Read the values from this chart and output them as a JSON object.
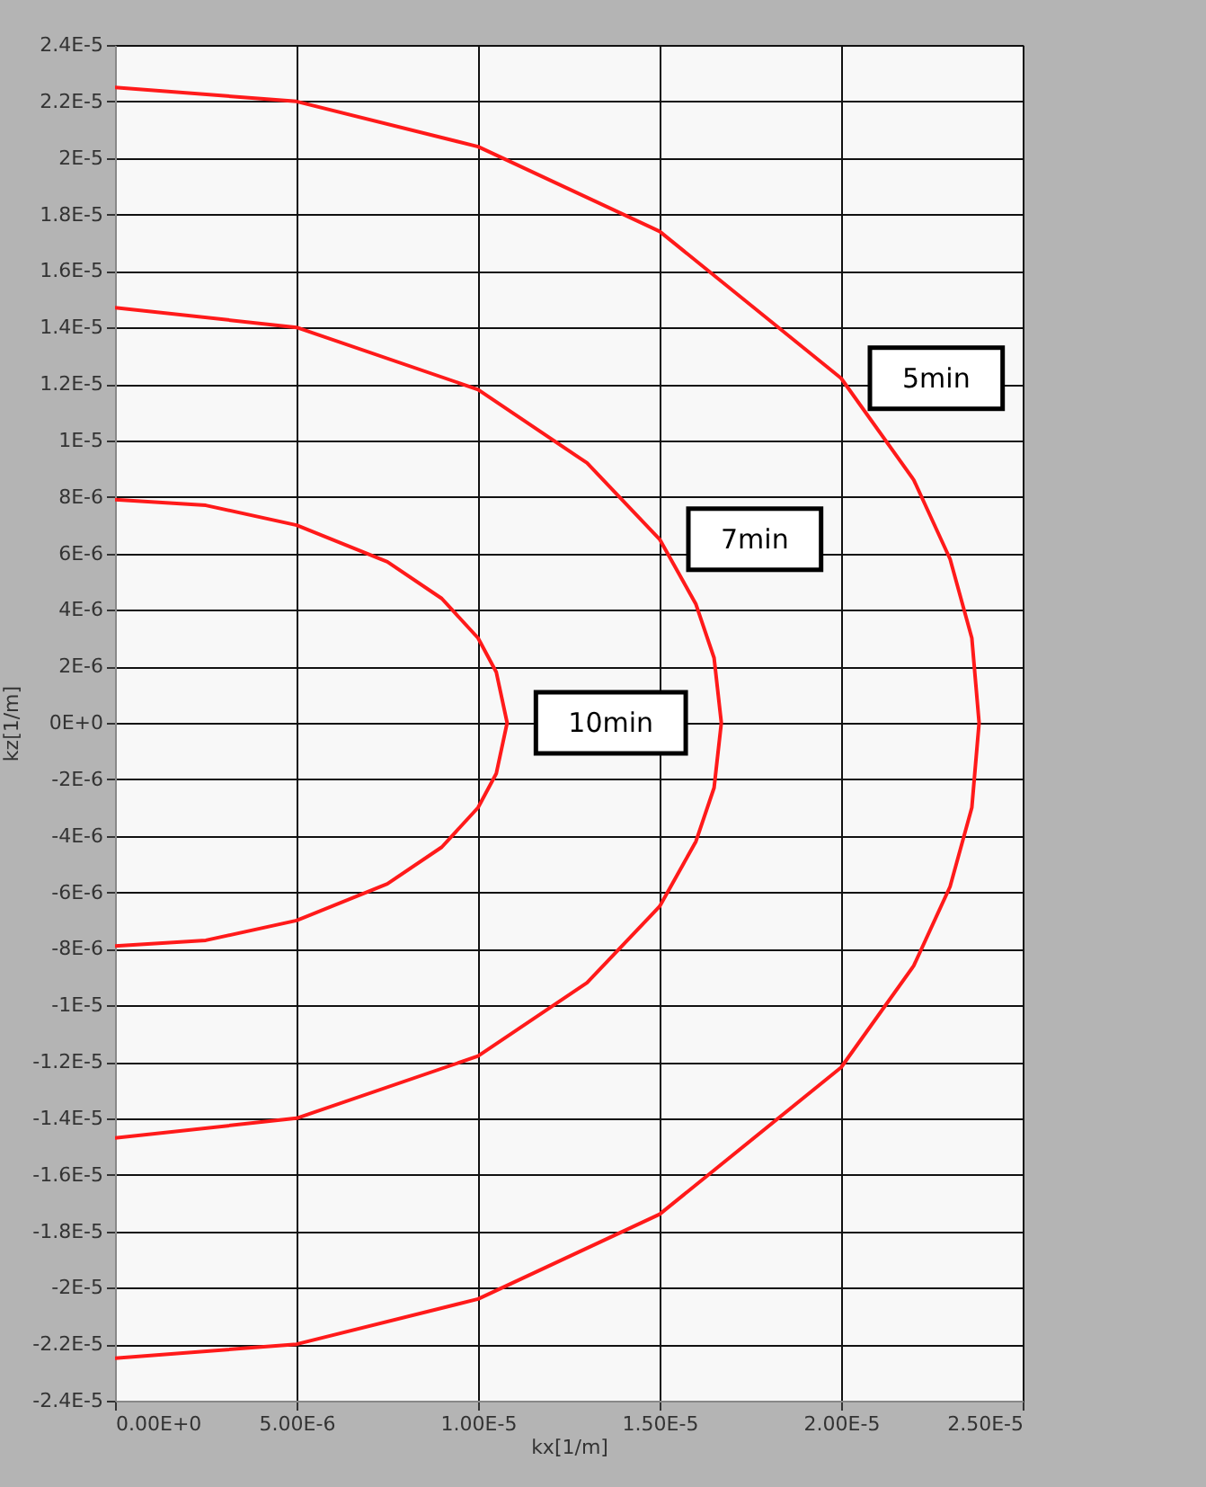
{
  "chart_data": {
    "type": "line",
    "xlabel": "kx[1/m]",
    "ylabel": "kz[1/m]",
    "xlim": [
      0,
      2.5e-05
    ],
    "ylim": [
      -2.4e-05,
      2.4e-05
    ],
    "xticks": [
      {
        "value": 0,
        "label": "0.00E+0"
      },
      {
        "value": 5e-06,
        "label": "5.00E-6"
      },
      {
        "value": 1e-05,
        "label": "1.00E-5"
      },
      {
        "value": 1.5e-05,
        "label": "1.50E-5"
      },
      {
        "value": 2e-05,
        "label": "2.00E-5"
      },
      {
        "value": 2.5e-05,
        "label": "2.50E-5"
      }
    ],
    "yticks": [
      {
        "value": -2.4e-05,
        "label": "-2.4E-5"
      },
      {
        "value": -2.2e-05,
        "label": "-2.2E-5"
      },
      {
        "value": -2e-05,
        "label": "-2E-5"
      },
      {
        "value": -1.8e-05,
        "label": "-1.8E-5"
      },
      {
        "value": -1.6e-05,
        "label": "-1.6E-5"
      },
      {
        "value": -1.4e-05,
        "label": "-1.4E-5"
      },
      {
        "value": -1.2e-05,
        "label": "-1.2E-5"
      },
      {
        "value": -1e-05,
        "label": "-1E-5"
      },
      {
        "value": -8e-06,
        "label": "-8E-6"
      },
      {
        "value": -6e-06,
        "label": "-6E-6"
      },
      {
        "value": -4e-06,
        "label": "-4E-6"
      },
      {
        "value": -2e-06,
        "label": "-2E-6"
      },
      {
        "value": 0,
        "label": "0E+0"
      },
      {
        "value": 2e-06,
        "label": "2E-6"
      },
      {
        "value": 4e-06,
        "label": "4E-6"
      },
      {
        "value": 6e-06,
        "label": "6E-6"
      },
      {
        "value": 8e-06,
        "label": "8E-6"
      },
      {
        "value": 1e-05,
        "label": "1E-5"
      },
      {
        "value": 1.2e-05,
        "label": "1.2E-5"
      },
      {
        "value": 1.4e-05,
        "label": "1.4E-5"
      },
      {
        "value": 1.6e-05,
        "label": "1.6E-5"
      },
      {
        "value": 1.8e-05,
        "label": "1.8E-5"
      },
      {
        "value": 2e-05,
        "label": "2E-5"
      },
      {
        "value": 2.2e-05,
        "label": "2.2E-5"
      },
      {
        "value": 2.4e-05,
        "label": "2.4E-5"
      }
    ],
    "grid": true,
    "legend": false,
    "marker": "none",
    "line_style": "solid",
    "series": [
      {
        "color": "#ff1a1a",
        "x": [
          0,
          5e-06,
          1e-05,
          1.5e-05,
          2e-05,
          2.2e-05,
          2.3e-05,
          2.36e-05,
          2.38e-05,
          2.36e-05,
          2.3e-05,
          2.2e-05,
          2e-05,
          1.5e-05,
          1e-05,
          5e-06,
          0
        ],
        "values": [
          2.25e-05,
          2.2e-05,
          2.04e-05,
          1.74e-05,
          1.22e-05,
          8.6e-06,
          5.8e-06,
          3e-06,
          0,
          -3e-06,
          -5.8e-06,
          -8.6e-06,
          -1.22e-05,
          -1.74e-05,
          -2.04e-05,
          -2.2e-05,
          -2.25e-05
        ]
      },
      {
        "color": "#ff1a1a",
        "x": [
          0,
          5e-06,
          1e-05,
          1.3e-05,
          1.5e-05,
          1.6e-05,
          1.65e-05,
          1.67e-05,
          1.65e-05,
          1.6e-05,
          1.5e-05,
          1.3e-05,
          1e-05,
          5e-06,
          0
        ],
        "values": [
          1.47e-05,
          1.4e-05,
          1.18e-05,
          9.2e-06,
          6.5e-06,
          4.2e-06,
          2.3e-06,
          0,
          -2.3e-06,
          -4.2e-06,
          -6.5e-06,
          -9.2e-06,
          -1.18e-05,
          -1.4e-05,
          -1.47e-05
        ]
      },
      {
        "color": "#ff1a1a",
        "x": [
          0,
          2.5e-06,
          5e-06,
          7.5e-06,
          9e-06,
          1e-05,
          1.05e-05,
          1.08e-05,
          1.05e-05,
          1e-05,
          9e-06,
          7.5e-06,
          5e-06,
          2.5e-06,
          0
        ],
        "values": [
          7.9e-06,
          7.7e-06,
          7e-06,
          5.7e-06,
          4.4e-06,
          3e-06,
          1.8e-06,
          0,
          -1.8e-06,
          -3e-06,
          -4.4e-06,
          -5.7e-06,
          -7e-06,
          -7.7e-06,
          -7.9e-06
        ]
      }
    ],
    "annotations": [
      {
        "text": "5min",
        "x": 2e-05,
        "y": 1.22e-05
      },
      {
        "text": "7min",
        "x": 1.5e-05,
        "y": 6.5e-06
      },
      {
        "text": "10min",
        "x": 1.08e-05,
        "y": 0
      }
    ]
  }
}
